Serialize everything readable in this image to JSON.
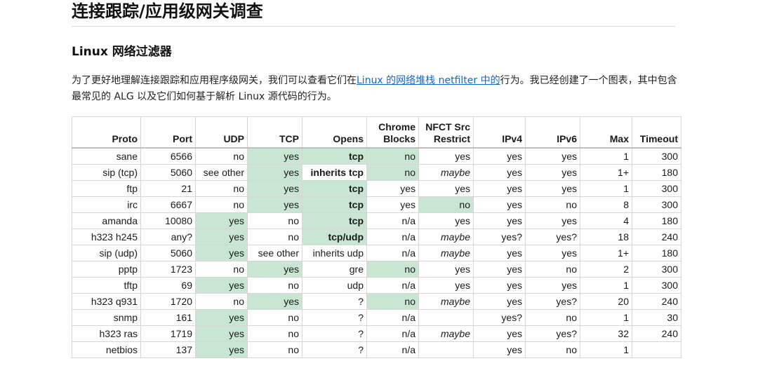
{
  "title": "连接跟踪/应用级网关调查",
  "subtitle": "Linux 网络过滤器",
  "paragraph": {
    "before_link": "为了更好地理解连接跟踪和应用程序级网关，我们可以查看它们在",
    "link": "Linux 的网络堆栈 netfilter 中的",
    "after_link": "行为。我已经创建了一个图表，其中包含最常见的 ALG 以及它们如何基于解析 Linux 源代码的行为。"
  },
  "table": {
    "headers": [
      "Proto",
      "Port",
      "UDP",
      "TCP",
      "Opens",
      "Chrome\nBlocks",
      "NFCT Src\nRestrict",
      "IPv4",
      "IPv6",
      "Max",
      "Timeout"
    ],
    "rows": [
      [
        "sane",
        "6566",
        "no",
        "yes",
        "tcp",
        "no",
        "yes",
        "yes",
        "yes",
        "1",
        "300"
      ],
      [
        "sip (tcp)",
        "5060",
        "see other",
        "yes",
        "inherits tcp",
        "no",
        "maybe",
        "yes",
        "yes",
        "1+",
        "180"
      ],
      [
        "ftp",
        "21",
        "no",
        "yes",
        "tcp",
        "yes",
        "yes",
        "yes",
        "yes",
        "1",
        "300"
      ],
      [
        "irc",
        "6667",
        "no",
        "yes",
        "tcp",
        "yes",
        "no",
        "yes",
        "no",
        "8",
        "300"
      ],
      [
        "amanda",
        "10080",
        "yes",
        "no",
        "tcp",
        "n/a",
        "yes",
        "yes",
        "yes",
        "4",
        "180"
      ],
      [
        "h323 h245",
        "any?",
        "yes",
        "no",
        "tcp/udp",
        "n/a",
        "maybe",
        "yes?",
        "yes?",
        "18",
        "240"
      ],
      [
        "sip (udp)",
        "5060",
        "yes",
        "see other",
        "inherits udp",
        "n/a",
        "maybe",
        "yes",
        "yes",
        "1+",
        "180"
      ],
      [
        "pptp",
        "1723",
        "no",
        "yes",
        "gre",
        "no",
        "yes",
        "yes",
        "no",
        "2",
        "300"
      ],
      [
        "tftp",
        "69",
        "yes",
        "no",
        "udp",
        "n/a",
        "yes",
        "yes",
        "yes",
        "1",
        "300"
      ],
      [
        "h323 q931",
        "1720",
        "no",
        "yes",
        "?",
        "no",
        "maybe",
        "yes",
        "yes?",
        "20",
        "240"
      ],
      [
        "snmp",
        "161",
        "yes",
        "no",
        "?",
        "n/a",
        "",
        "yes?",
        "no",
        "1",
        "30"
      ],
      [
        "h323 ras",
        "1719",
        "yes",
        "no",
        "?",
        "n/a",
        "maybe",
        "yes",
        "yes?",
        "32",
        "240"
      ],
      [
        "netbios",
        "137",
        "yes",
        "no",
        "?",
        "n/a",
        "",
        "yes",
        "no",
        "1",
        ""
      ]
    ],
    "green_cells": [
      [
        0,
        3
      ],
      [
        0,
        4
      ],
      [
        0,
        5
      ],
      [
        1,
        3
      ],
      [
        1,
        5
      ],
      [
        2,
        3
      ],
      [
        2,
        4
      ],
      [
        3,
        3
      ],
      [
        3,
        4
      ],
      [
        3,
        6
      ],
      [
        4,
        2
      ],
      [
        4,
        4
      ],
      [
        5,
        2
      ],
      [
        5,
        4
      ],
      [
        6,
        2
      ],
      [
        7,
        3
      ],
      [
        7,
        5
      ],
      [
        8,
        2
      ],
      [
        9,
        3
      ],
      [
        9,
        5
      ],
      [
        10,
        2
      ],
      [
        11,
        2
      ],
      [
        12,
        2
      ]
    ],
    "bold_cells": [
      [
        0,
        4
      ],
      [
        1,
        4
      ],
      [
        2,
        4
      ],
      [
        3,
        4
      ],
      [
        4,
        4
      ],
      [
        5,
        4
      ]
    ],
    "italic_cells": [
      [
        1,
        6
      ],
      [
        5,
        6
      ],
      [
        6,
        6
      ],
      [
        9,
        6
      ],
      [
        11,
        6
      ]
    ],
    "highlight_color": "#c8e6d2"
  }
}
